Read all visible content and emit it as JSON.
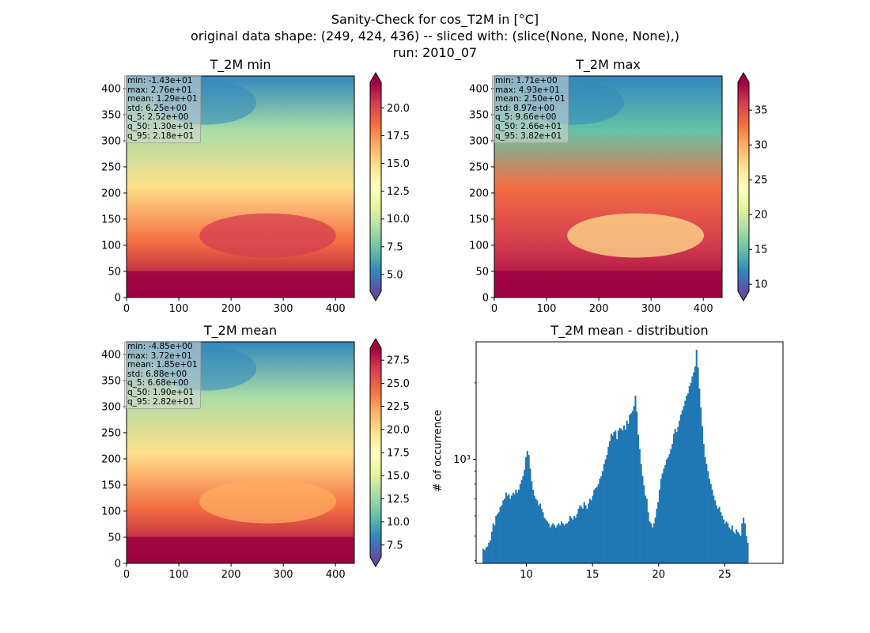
{
  "figure": {
    "title_lines": [
      "Sanity-Check for cos_T2M in [°C]",
      "original data shape: (249, 424, 436) -- sliced with: (slice(None, None, None),)",
      "run: 2010_07"
    ]
  },
  "colors": {
    "colormap": "Spectral_r",
    "histogram_bar": "#1f77b4"
  },
  "chart_data": [
    {
      "type": "heatmap",
      "title": "T_2M min",
      "colormap": "Spectral_r",
      "xlim": [
        0,
        436
      ],
      "ylim": [
        0,
        424
      ],
      "xticks": [
        0,
        100,
        200,
        300,
        400
      ],
      "yticks": [
        0,
        50,
        100,
        150,
        200,
        250,
        300,
        350,
        400
      ],
      "colorbar": {
        "range": [
          3.5,
          22.3
        ],
        "ticks": [
          "5.0",
          "7.5",
          "10.0",
          "12.5",
          "15.0",
          "17.5",
          "20.0"
        ],
        "extend": "both"
      },
      "stats": [
        "min: -1.43e+01",
        "max: 2.76e+01",
        "mean: 1.29e+01",
        "std: 6.25e+00",
        "q_5: 2.52e+00",
        "q_50: 1.30e+01",
        "q_95: 2.18e+01"
      ]
    },
    {
      "type": "heatmap",
      "title": "T_2M max",
      "colormap": "Spectral_r",
      "xlim": [
        0,
        436
      ],
      "ylim": [
        0,
        424
      ],
      "xticks": [
        0,
        100,
        200,
        300,
        400
      ],
      "yticks": [
        0,
        50,
        100,
        150,
        200,
        250,
        300,
        350,
        400
      ],
      "colorbar": {
        "range": [
          9.0,
          39.0
        ],
        "ticks": [
          "10",
          "15",
          "20",
          "25",
          "30",
          "35"
        ],
        "extend": "both"
      },
      "stats": [
        "min: 1.71e+00",
        "max: 4.93e+01",
        "mean: 2.50e+01",
        "std: 8.97e+00",
        "q_5: 9.66e+00",
        "q_50: 2.66e+01",
        "q_95: 3.82e+01"
      ]
    },
    {
      "type": "heatmap",
      "title": "T_2M mean",
      "colormap": "Spectral_r",
      "xlim": [
        0,
        436
      ],
      "ylim": [
        0,
        424
      ],
      "xticks": [
        0,
        100,
        200,
        300,
        400
      ],
      "yticks": [
        0,
        50,
        100,
        150,
        200,
        250,
        300,
        350,
        400
      ],
      "colorbar": {
        "range": [
          6.2,
          28.8
        ],
        "ticks": [
          "7.5",
          "10.0",
          "12.5",
          "15.0",
          "17.5",
          "20.0",
          "22.5",
          "25.0",
          "27.5"
        ],
        "extend": "both"
      },
      "stats": [
        "min: -4.85e+00",
        "max: 3.72e+01",
        "mean: 1.85e+01",
        "std: 6.88e+00",
        "q_5: 6.68e+00",
        "q_50: 1.90e+01",
        "q_95: 2.82e+01"
      ]
    },
    {
      "type": "bar",
      "title": "T_2M mean - distribution",
      "ylabel": "# of occurrence",
      "yscale": "log",
      "xlim": [
        6.2,
        29.4
      ],
      "ylim": [
        390,
        2900
      ],
      "xticks": [
        10,
        15,
        20,
        25
      ],
      "yticks": [
        {
          "value": 1000,
          "label": "10³"
        }
      ],
      "bin_start": 6.68,
      "bin_width": 0.1075,
      "values": [
        445,
        440,
        450,
        455,
        470,
        480,
        520,
        560,
        550,
        600,
        610,
        620,
        650,
        660,
        690,
        700,
        740,
        720,
        730,
        700,
        720,
        740,
        730,
        760,
        740,
        760,
        800,
        830,
        860,
        910,
        1020,
        1080,
        1040,
        920,
        820,
        760,
        720,
        700,
        690,
        660,
        670,
        640,
        620,
        590,
        580,
        570,
        560,
        540,
        550,
        560,
        550,
        540,
        550,
        560,
        550,
        570,
        560,
        550,
        560,
        560,
        570,
        600,
        590,
        580,
        600,
        590,
        610,
        640,
        660,
        650,
        640,
        680,
        660,
        640,
        670,
        700,
        690,
        720,
        760,
        770,
        780,
        800,
        840,
        860,
        900,
        960,
        1000,
        1040,
        1120,
        1180,
        1260,
        1240,
        1280,
        1300,
        1200,
        1300,
        1330,
        1320,
        1300,
        1360,
        1310,
        1420,
        1380,
        1500,
        1520,
        1550,
        1620,
        1780,
        1540,
        1250,
        1100,
        960,
        860,
        790,
        720,
        700,
        620,
        570,
        560,
        540,
        560,
        590,
        640,
        680,
        760,
        840,
        880,
        920,
        950,
        1000,
        1020,
        1050,
        1100,
        1150,
        1260,
        1320,
        1280,
        1340,
        1420,
        1500,
        1560,
        1620,
        1700,
        1780,
        1820,
        1940,
        2000,
        2120,
        2200,
        2320,
        2700,
        2300,
        1900,
        1600,
        1350,
        1150,
        1020,
        960,
        900,
        840,
        800,
        760,
        720,
        690,
        660,
        640,
        650,
        620,
        600,
        580,
        560,
        570,
        560,
        540,
        530,
        550,
        520,
        510,
        530,
        520,
        510,
        500,
        560,
        590,
        560,
        500,
        470
      ]
    }
  ]
}
